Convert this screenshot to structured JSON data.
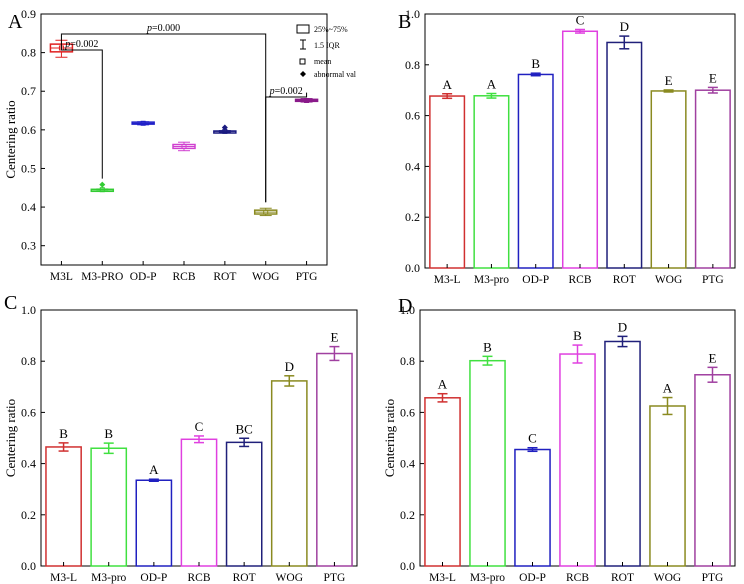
{
  "figure": {
    "panels": [
      "A",
      "B",
      "C",
      "D"
    ]
  },
  "chart_data": [
    {
      "panel": "A",
      "type": "box",
      "ylabel": "Centering ratio",
      "xlabel": "",
      "ylim": [
        0.25,
        0.9
      ],
      "yticks": [
        0.3,
        0.4,
        0.5,
        0.6,
        0.7,
        0.8,
        0.9
      ],
      "grid": false,
      "categories": [
        "M3L",
        "M3-PRO",
        "OD-P",
        "RCB",
        "ROT",
        "WOG",
        "PTG"
      ],
      "boxes": [
        {
          "q1": 0.802,
          "q3": 0.822,
          "median": 0.812,
          "mean": 0.812,
          "whisker_low": 0.788,
          "whisker_high": 0.832,
          "outliers": [],
          "color": "#e02020"
        },
        {
          "q1": 0.443,
          "q3": 0.446,
          "median": 0.445,
          "mean": 0.445,
          "whisker_low": 0.442,
          "whisker_high": 0.447,
          "outliers": [
            0.458
          ],
          "color": "#33cc33"
        },
        {
          "q1": 0.615,
          "q3": 0.62,
          "median": 0.617,
          "mean": 0.617,
          "whisker_low": 0.613,
          "whisker_high": 0.621,
          "outliers": [],
          "color": "#2020c8"
        },
        {
          "q1": 0.552,
          "q3": 0.562,
          "median": 0.557,
          "mean": 0.557,
          "whisker_low": 0.546,
          "whisker_high": 0.568,
          "outliers": [],
          "color": "#d040d0"
        },
        {
          "q1": 0.595,
          "q3": 0.597,
          "median": 0.596,
          "mean": 0.596,
          "whisker_low": 0.594,
          "whisker_high": 0.598,
          "outliers": [
            0.606
          ],
          "color": "#1a1a80"
        },
        {
          "q1": 0.382,
          "q3": 0.392,
          "median": 0.387,
          "mean": 0.387,
          "whisker_low": 0.378,
          "whisker_high": 0.397,
          "outliers": [],
          "color": "#8a8a20"
        },
        {
          "q1": 0.674,
          "q3": 0.679,
          "median": 0.676,
          "mean": 0.676,
          "whisker_low": 0.672,
          "whisker_high": 0.681,
          "outliers": [],
          "color": "#8a1a8a"
        }
      ],
      "brackets": [
        {
          "from": "M3L",
          "to": "WOG",
          "label": "p=0.000"
        },
        {
          "from": "M3L",
          "to": "M3-PRO",
          "label": "p=0.002"
        },
        {
          "from": "WOG",
          "to": "PTG",
          "label": "p=0.002"
        }
      ],
      "legend": {
        "position": "top-right",
        "entries": [
          "25%~75%",
          "1.5 IQR",
          "mean",
          "abnormal val"
        ]
      }
    },
    {
      "panel": "B",
      "type": "bar",
      "ylabel": "",
      "ylim": [
        0,
        1.0
      ],
      "yticks": [
        0.0,
        0.2,
        0.4,
        0.6,
        0.8,
        1.0
      ],
      "categories": [
        "M3-L",
        "M3-pro",
        "OD-P",
        "RCB",
        "ROT",
        "WOG",
        "PTG"
      ],
      "values": [
        0.677,
        0.678,
        0.762,
        0.932,
        0.888,
        0.697,
        0.7
      ],
      "errors": [
        0.009,
        0.009,
        0.005,
        0.007,
        0.025,
        0.004,
        0.011
      ],
      "letters": [
        "A",
        "A",
        "B",
        "C",
        "D",
        "E",
        "E"
      ],
      "colors": [
        "#d03030",
        "#40e040",
        "#2020c0",
        "#e040e0",
        "#20207a",
        "#8a8a20",
        "#a040a0"
      ]
    },
    {
      "panel": "C",
      "type": "bar",
      "ylabel": "Centering ratio",
      "ylim": [
        0,
        1.0
      ],
      "yticks": [
        0.0,
        0.2,
        0.4,
        0.6,
        0.8,
        1.0
      ],
      "categories": [
        "M3-L",
        "M3-pro",
        "OD-P",
        "RCB",
        "ROT",
        "WOG",
        "PTG"
      ],
      "values": [
        0.465,
        0.46,
        0.335,
        0.495,
        0.483,
        0.723,
        0.83
      ],
      "errors": [
        0.016,
        0.02,
        0.004,
        0.013,
        0.016,
        0.02,
        0.027
      ],
      "letters": [
        "B",
        "B",
        "A",
        "C",
        "BC",
        "D",
        "E"
      ],
      "colors": [
        "#d03030",
        "#40e040",
        "#2020c0",
        "#e040e0",
        "#20207a",
        "#8a8a20",
        "#a040a0"
      ]
    },
    {
      "panel": "D",
      "type": "bar",
      "ylabel": "Centering ratio",
      "ylim": [
        0,
        1.0
      ],
      "yticks": [
        0.0,
        0.2,
        0.4,
        0.6,
        0.8,
        1.0
      ],
      "categories": [
        "M3-L",
        "M3-pro",
        "OD-P",
        "RCB",
        "ROT",
        "WOG",
        "PTG"
      ],
      "values": [
        0.657,
        0.802,
        0.455,
        0.828,
        0.877,
        0.625,
        0.747
      ],
      "errors": [
        0.016,
        0.017,
        0.007,
        0.035,
        0.02,
        0.033,
        0.029
      ],
      "letters": [
        "A",
        "B",
        "C",
        "B",
        "D",
        "A",
        "E"
      ],
      "colors": [
        "#d03030",
        "#40e040",
        "#2020c0",
        "#e040e0",
        "#20207a",
        "#8a8a20",
        "#a040a0"
      ]
    }
  ]
}
